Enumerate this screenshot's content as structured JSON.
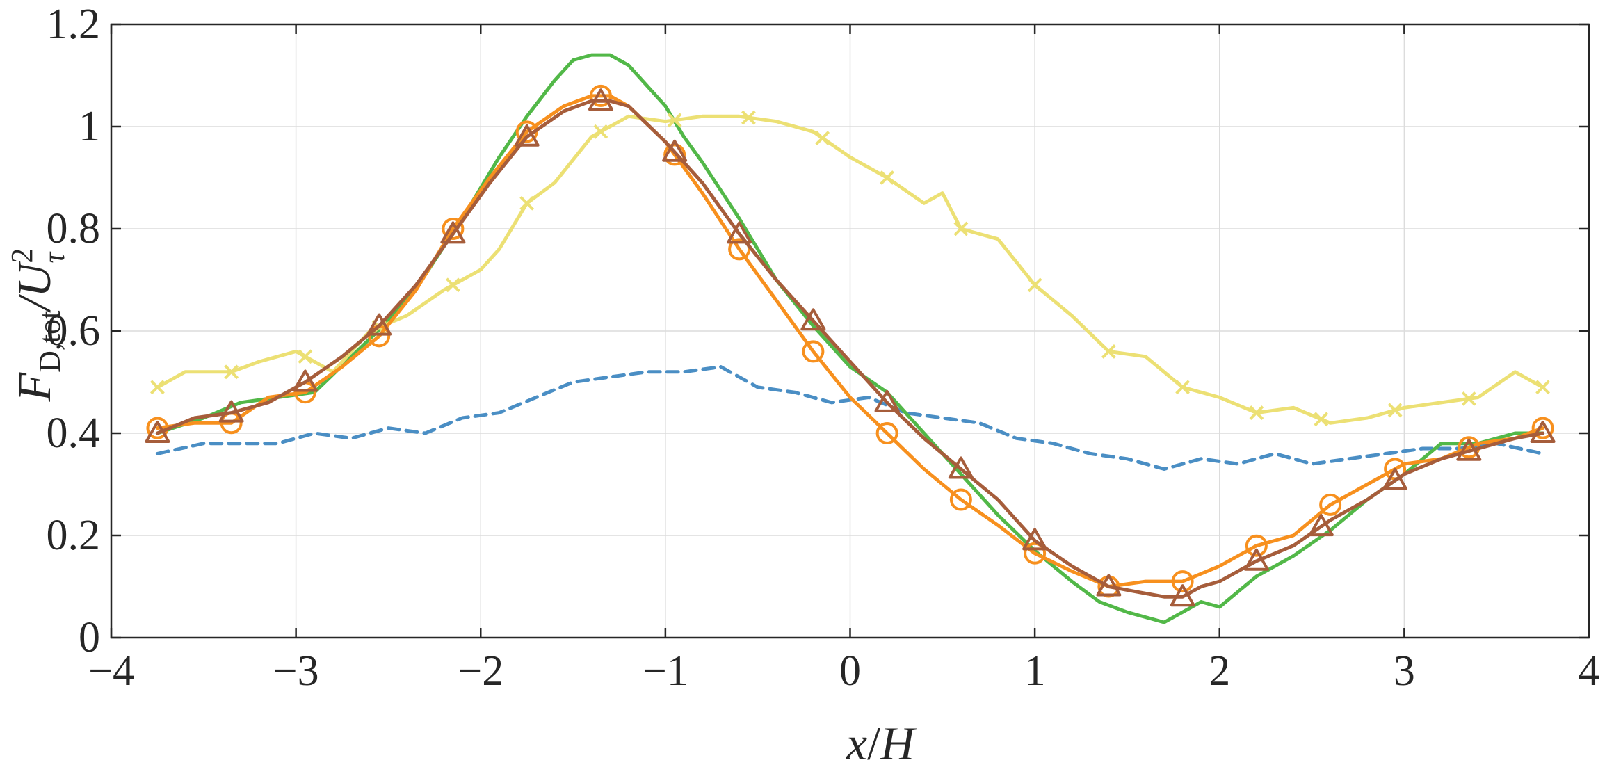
{
  "chart_data": {
    "type": "line",
    "title": "",
    "xlabel": "x/H",
    "ylabel": "F_D,tot/U_τ^2",
    "ylabel_parts": {
      "main": "F",
      "sub": "D,tot",
      "slash": "/U",
      "sup": "2",
      "sub2": "τ"
    },
    "xlabel_parts": {
      "a": "x",
      "slash": "/",
      "b": "H"
    },
    "xlim": [
      -4,
      4
    ],
    "ylim": [
      0,
      1.2
    ],
    "xticks": [
      -4,
      -3,
      -2,
      -1,
      0,
      1,
      2,
      3,
      4
    ],
    "xtick_labels": [
      "−4",
      "−3",
      "−2",
      "−1",
      "0",
      "1",
      "2",
      "3",
      "4"
    ],
    "yticks": [
      0,
      0.2,
      0.4,
      0.6,
      0.8,
      1,
      1.2
    ],
    "ytick_labels": [
      "0",
      "0.2",
      "0.4",
      "0.6",
      "0.8",
      "1",
      "1.2"
    ],
    "grid": true,
    "series": [
      {
        "name": "dashed-blue",
        "color": "#4a8ec4",
        "dash": "16 10",
        "marker": "none",
        "x": [
          -3.75,
          -3.5,
          -3.3,
          -3.1,
          -2.9,
          -2.7,
          -2.5,
          -2.3,
          -2.1,
          -1.9,
          -1.7,
          -1.5,
          -1.3,
          -1.1,
          -0.9,
          -0.7,
          -0.5,
          -0.3,
          -0.1,
          0.1,
          0.3,
          0.5,
          0.7,
          0.9,
          1.1,
          1.3,
          1.5,
          1.7,
          1.9,
          2.1,
          2.3,
          2.5,
          2.7,
          2.9,
          3.1,
          3.3,
          3.5,
          3.75
        ],
        "y": [
          0.36,
          0.38,
          0.38,
          0.38,
          0.4,
          0.39,
          0.41,
          0.4,
          0.43,
          0.44,
          0.47,
          0.5,
          0.51,
          0.52,
          0.52,
          0.53,
          0.49,
          0.48,
          0.46,
          0.47,
          0.44,
          0.43,
          0.42,
          0.39,
          0.38,
          0.36,
          0.35,
          0.33,
          0.35,
          0.34,
          0.36,
          0.34,
          0.35,
          0.36,
          0.37,
          0.37,
          0.38,
          0.36
        ],
        "markers_x": []
      },
      {
        "name": "green",
        "color": "#52b848",
        "dash": "",
        "marker": "none",
        "x": [
          -3.75,
          -3.5,
          -3.3,
          -3.1,
          -2.9,
          -2.7,
          -2.5,
          -2.3,
          -2.1,
          -1.9,
          -1.75,
          -1.6,
          -1.5,
          -1.4,
          -1.3,
          -1.2,
          -1.1,
          -1.0,
          -0.9,
          -0.8,
          -0.6,
          -0.4,
          -0.2,
          0.0,
          0.2,
          0.4,
          0.6,
          0.8,
          1.0,
          1.2,
          1.35,
          1.5,
          1.6,
          1.7,
          1.8,
          1.9,
          2.0,
          2.2,
          2.4,
          2.6,
          2.8,
          3.0,
          3.2,
          3.4,
          3.6,
          3.75
        ],
        "y": [
          0.4,
          0.43,
          0.46,
          0.47,
          0.48,
          0.55,
          0.62,
          0.71,
          0.82,
          0.94,
          1.02,
          1.09,
          1.13,
          1.14,
          1.14,
          1.12,
          1.08,
          1.04,
          0.98,
          0.93,
          0.82,
          0.7,
          0.61,
          0.53,
          0.48,
          0.4,
          0.32,
          0.24,
          0.17,
          0.11,
          0.07,
          0.05,
          0.04,
          0.03,
          0.05,
          0.07,
          0.06,
          0.12,
          0.16,
          0.21,
          0.27,
          0.32,
          0.38,
          0.38,
          0.4,
          0.4
        ],
        "markers_x": []
      },
      {
        "name": "yellow-x",
        "color": "#ece074",
        "dash": "",
        "marker": "x",
        "x": [
          -3.75,
          -3.6,
          -3.35,
          -3.2,
          -3.0,
          -2.8,
          -2.6,
          -2.4,
          -2.2,
          -2.0,
          -1.9,
          -1.75,
          -1.6,
          -1.4,
          -1.2,
          -1.0,
          -0.8,
          -0.6,
          -0.4,
          -0.2,
          0.0,
          0.2,
          0.4,
          0.5,
          0.6,
          0.8,
          1.0,
          1.2,
          1.4,
          1.6,
          1.8,
          2.0,
          2.2,
          2.4,
          2.6,
          2.8,
          3.0,
          3.2,
          3.4,
          3.6,
          3.75
        ],
        "y": [
          0.49,
          0.52,
          0.52,
          0.54,
          0.56,
          0.52,
          0.6,
          0.63,
          0.68,
          0.72,
          0.76,
          0.85,
          0.89,
          0.98,
          1.02,
          1.01,
          1.02,
          1.02,
          1.01,
          0.99,
          0.94,
          0.9,
          0.85,
          0.87,
          0.8,
          0.78,
          0.69,
          0.63,
          0.56,
          0.55,
          0.49,
          0.47,
          0.44,
          0.45,
          0.42,
          0.43,
          0.45,
          0.46,
          0.47,
          0.52,
          0.49
        ],
        "markers_x": [
          -3.75,
          -3.35,
          -2.95,
          -2.55,
          -2.15,
          -1.75,
          -1.35,
          -0.95,
          -0.55,
          -0.15,
          0.2,
          0.6,
          1.0,
          1.4,
          1.8,
          2.2,
          2.55,
          2.95,
          3.35,
          3.75
        ]
      },
      {
        "name": "orange-circle",
        "color": "#f7901e",
        "dash": "",
        "marker": "circle",
        "x": [
          -3.75,
          -3.55,
          -3.35,
          -3.15,
          -2.95,
          -2.75,
          -2.55,
          -2.35,
          -2.15,
          -1.95,
          -1.75,
          -1.55,
          -1.4,
          -1.3,
          -1.2,
          -1.0,
          -0.8,
          -0.6,
          -0.4,
          -0.2,
          0.0,
          0.2,
          0.4,
          0.6,
          0.8,
          1.0,
          1.2,
          1.4,
          1.6,
          1.8,
          2.0,
          2.2,
          2.4,
          2.6,
          2.8,
          3.0,
          3.2,
          3.4,
          3.6,
          3.75
        ],
        "y": [
          0.41,
          0.42,
          0.42,
          0.47,
          0.48,
          0.53,
          0.59,
          0.68,
          0.8,
          0.9,
          0.99,
          1.04,
          1.06,
          1.06,
          1.04,
          0.97,
          0.87,
          0.76,
          0.66,
          0.56,
          0.47,
          0.4,
          0.33,
          0.27,
          0.22,
          0.165,
          0.13,
          0.1,
          0.11,
          0.11,
          0.14,
          0.18,
          0.2,
          0.26,
          0.3,
          0.34,
          0.35,
          0.38,
          0.39,
          0.41
        ],
        "markers_x": [
          -3.75,
          -3.35,
          -2.95,
          -2.55,
          -2.15,
          -1.75,
          -1.35,
          -0.95,
          -0.6,
          -0.2,
          0.2,
          0.6,
          1.0,
          1.4,
          1.8,
          2.2,
          2.6,
          2.95,
          3.35,
          3.75
        ]
      },
      {
        "name": "brown-triangle",
        "color": "#a65d3b",
        "dash": "",
        "marker": "triangle",
        "x": [
          -3.75,
          -3.55,
          -3.35,
          -3.15,
          -2.95,
          -2.75,
          -2.55,
          -2.35,
          -2.15,
          -1.95,
          -1.75,
          -1.55,
          -1.4,
          -1.3,
          -1.2,
          -1.0,
          -0.8,
          -0.6,
          -0.4,
          -0.2,
          0.0,
          0.2,
          0.4,
          0.6,
          0.8,
          1.0,
          1.2,
          1.4,
          1.55,
          1.7,
          1.8,
          1.9,
          2.0,
          2.2,
          2.4,
          2.6,
          2.8,
          3.0,
          3.2,
          3.4,
          3.6,
          3.75
        ],
        "y": [
          0.4,
          0.43,
          0.44,
          0.46,
          0.5,
          0.55,
          0.61,
          0.69,
          0.79,
          0.89,
          0.98,
          1.03,
          1.05,
          1.05,
          1.04,
          0.97,
          0.89,
          0.79,
          0.7,
          0.62,
          0.54,
          0.46,
          0.39,
          0.33,
          0.27,
          0.19,
          0.14,
          0.1,
          0.09,
          0.08,
          0.08,
          0.1,
          0.11,
          0.15,
          0.18,
          0.23,
          0.27,
          0.32,
          0.35,
          0.37,
          0.39,
          0.4
        ],
        "markers_x": [
          -3.75,
          -3.35,
          -2.95,
          -2.55,
          -2.15,
          -1.75,
          -1.35,
          -0.95,
          -0.6,
          -0.2,
          0.2,
          0.6,
          1.0,
          1.4,
          1.8,
          2.2,
          2.55,
          2.95,
          3.35,
          3.75
        ]
      }
    ]
  }
}
